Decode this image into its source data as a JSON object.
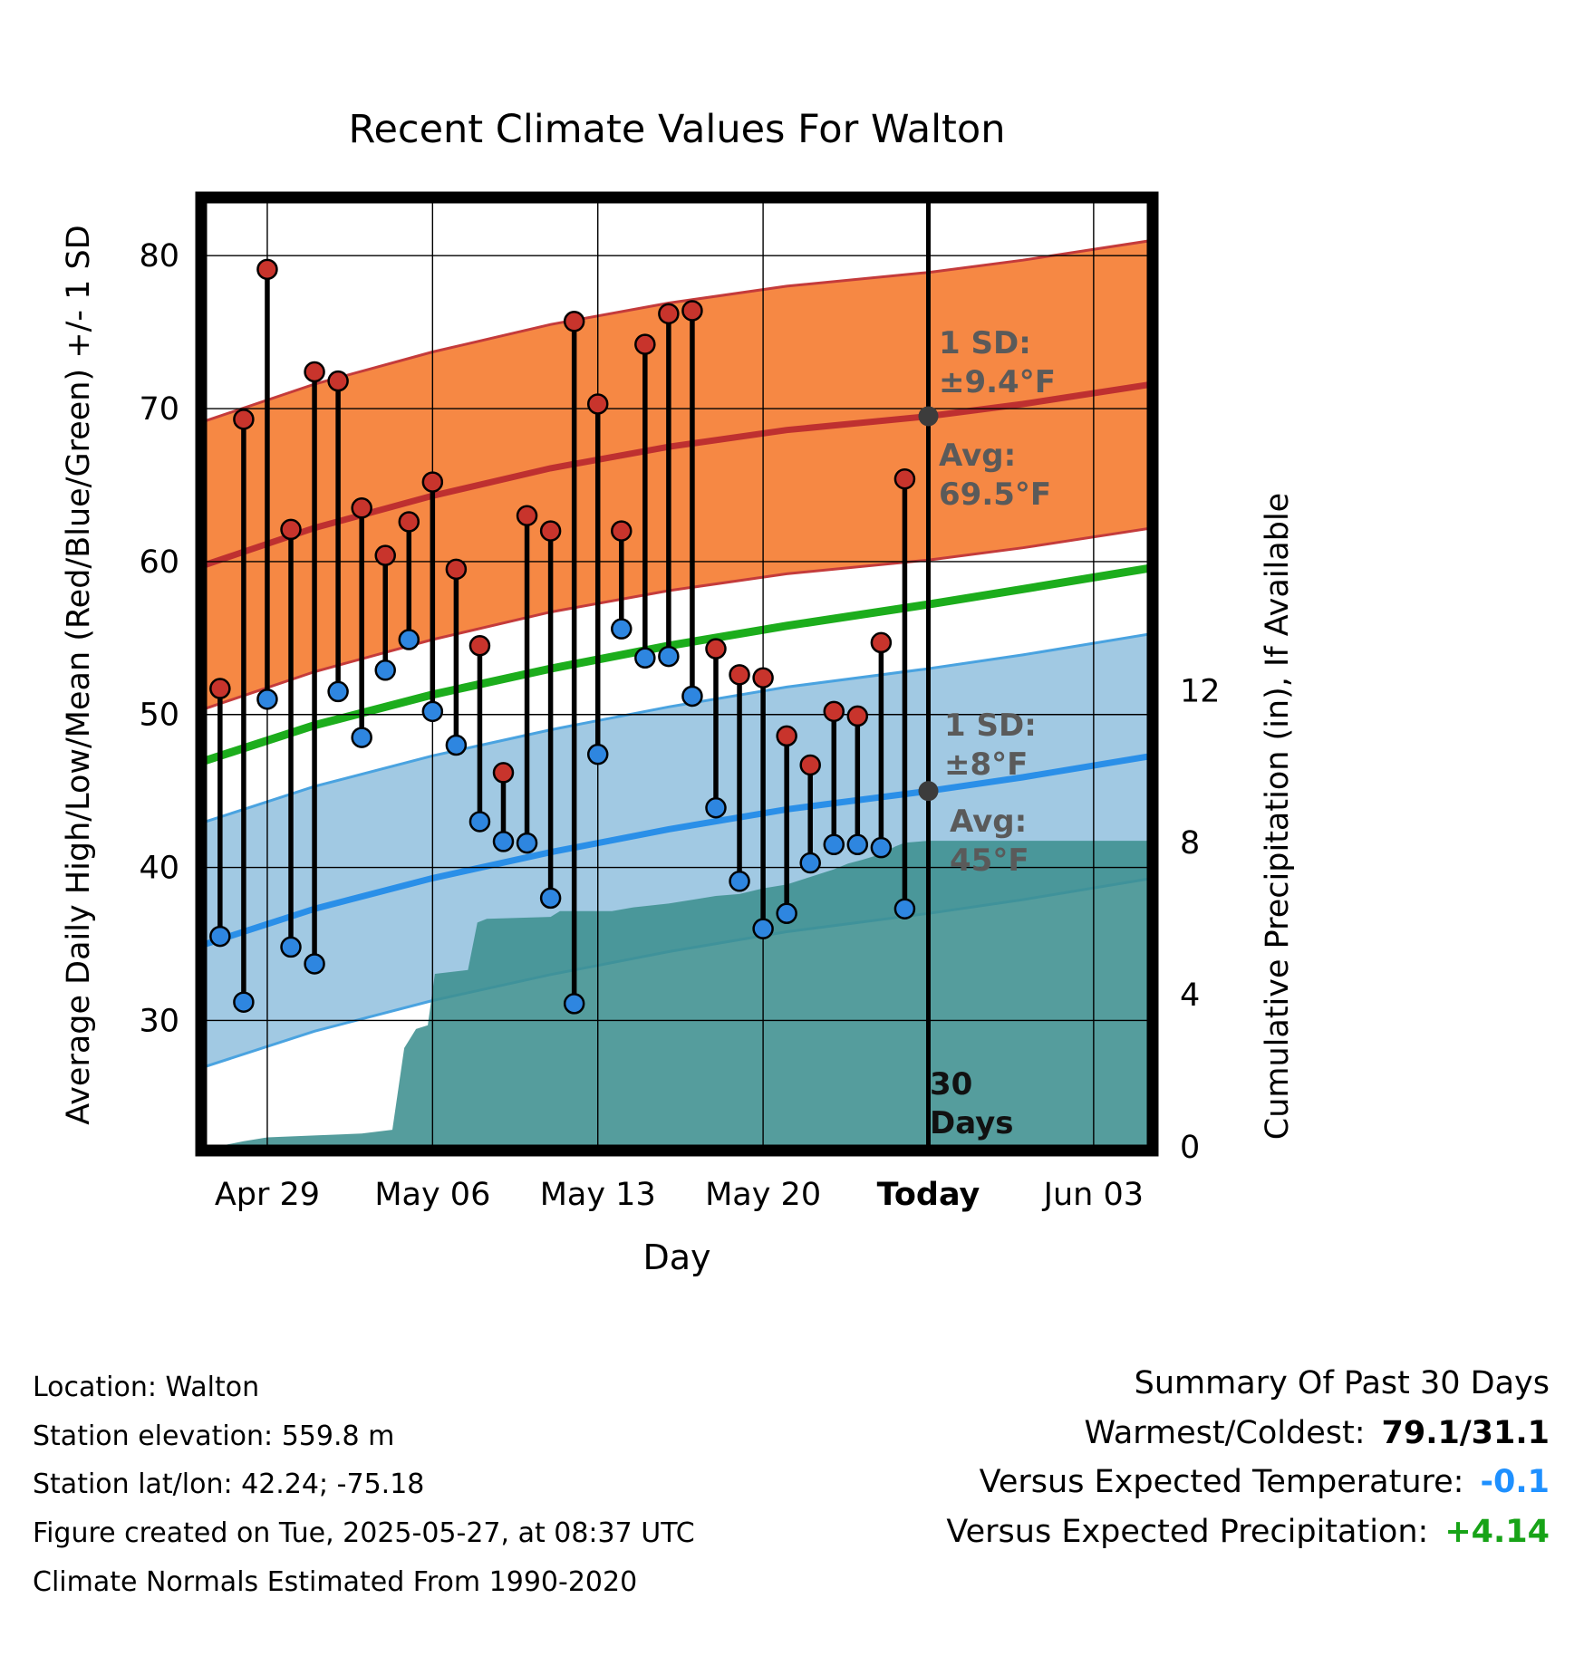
{
  "title": "Recent Climate Values For Walton",
  "axes": {
    "y_left_label": "Average Daily High/Low/Mean (Red/Blue/Green) +/- 1 SD",
    "y_right_label": "Cumulative Precipitation (in), If Available",
    "x_label": "Day",
    "x_domain": [
      0.2,
      40.5
    ],
    "y_left_domain": [
      21.5,
      83.8
    ],
    "y_right_domain": [
      0,
      24.97
    ],
    "y_left_ticks": [
      30,
      40,
      50,
      60,
      70,
      80
    ],
    "y_right_ticks": [
      0,
      4,
      8,
      12
    ],
    "x_ticks": [
      {
        "day": 3,
        "label": "Apr 29",
        "bold": false
      },
      {
        "day": 10,
        "label": "May 06",
        "bold": false
      },
      {
        "day": 17,
        "label": "May 13",
        "bold": false
      },
      {
        "day": 24,
        "label": "May 20",
        "bold": false
      },
      {
        "day": 31,
        "label": "Today",
        "bold": true
      },
      {
        "day": 38,
        "label": "Jun 03",
        "bold": false
      }
    ]
  },
  "chart_data": {
    "type": "line",
    "title": "Recent Climate Values For Walton",
    "xlabel": "Day",
    "ylabel_left": "Average Daily High/Low/Mean (Red/Blue/Green) +/- 1 SD",
    "ylabel_right": "Cumulative Precipitation (in), If Available",
    "today_day": 31,
    "today_high_avg": 69.5,
    "today_low_avg": 45,
    "daily_observations": {
      "dates": [
        "Apr 27",
        "Apr 28",
        "Apr 29",
        "Apr 30",
        "May 01",
        "May 02",
        "May 03",
        "May 04",
        "May 05",
        "May 06",
        "May 07",
        "May 08",
        "May 09",
        "May 10",
        "May 11",
        "May 12",
        "May 13",
        "May 14",
        "May 15",
        "May 16",
        "May 17",
        "May 18",
        "May 19",
        "May 20",
        "May 21",
        "May 22",
        "May 23",
        "May 24",
        "May 25",
        "May 26"
      ],
      "day_offsets": [
        1,
        2,
        3,
        4,
        5,
        6,
        7,
        8,
        9,
        10,
        11,
        12,
        13,
        14,
        15,
        16,
        17,
        18,
        19,
        20,
        21,
        22,
        23,
        24,
        25,
        26,
        27,
        28,
        29,
        30
      ],
      "high_f": [
        51.7,
        69.3,
        79.1,
        62.1,
        72.4,
        71.8,
        63.5,
        60.4,
        62.6,
        65.2,
        59.5,
        54.5,
        46.2,
        63.0,
        62.0,
        75.7,
        70.3,
        62.0,
        74.2,
        76.2,
        76.4,
        54.3,
        52.6,
        52.4,
        48.6,
        46.7,
        50.2,
        49.9,
        54.7,
        65.4
      ],
      "low_f": [
        35.5,
        31.2,
        51.0,
        34.8,
        33.7,
        51.5,
        48.5,
        52.9,
        54.9,
        50.2,
        48.0,
        43.0,
        41.7,
        41.6,
        38.0,
        31.1,
        47.4,
        55.6,
        53.7,
        53.8,
        51.2,
        43.9,
        39.1,
        36.0,
        37.0,
        40.3,
        41.5,
        41.5,
        41.3,
        37.3
      ]
    },
    "climatology": {
      "days": [
        0.2,
        5,
        10,
        15,
        20,
        25,
        31,
        35,
        40.5
      ],
      "high_mean": [
        59.7,
        62.2,
        64.3,
        66.1,
        67.5,
        68.6,
        69.5,
        70.3,
        71.6
      ],
      "mean": [
        46.9,
        49.3,
        51.3,
        53.0,
        54.5,
        55.8,
        57.2,
        58.2,
        59.6
      ],
      "low_mean": [
        34.9,
        37.3,
        39.3,
        41.0,
        42.5,
        43.8,
        45.0,
        45.9,
        47.3
      ],
      "high_sd": 9.4,
      "low_sd": 8.0
    },
    "cumulative_precip_in": {
      "days": [
        0.8,
        2,
        3,
        5,
        7,
        8.3,
        8.8,
        9.3,
        9.8,
        10.1,
        11.5,
        11.9,
        12.3,
        15.0,
        15.4,
        17.6,
        18.5,
        20,
        21,
        22,
        23,
        24,
        25,
        26,
        27,
        27.6,
        28.2,
        29,
        29.6,
        30,
        31,
        40.5
      ],
      "values": [
        0,
        0.15,
        0.25,
        0.3,
        0.35,
        0.45,
        2.6,
        3.1,
        3.2,
        4.55,
        4.65,
        5.9,
        6.0,
        6.05,
        6.2,
        6.2,
        6.3,
        6.4,
        6.5,
        6.6,
        6.65,
        6.8,
        6.9,
        7.1,
        7.3,
        7.45,
        7.55,
        7.7,
        7.9,
        8.0,
        8.05,
        8.05
      ]
    }
  },
  "annotations": {
    "high_sd_label": "1 SD:",
    "high_sd_value": "±9.4°F",
    "high_avg_label": "Avg:",
    "high_avg_value": "69.5°F",
    "low_sd_label": "1 SD:",
    "low_sd_value": "±8°F",
    "low_avg_label": "Avg:",
    "low_avg_value": "45°F",
    "days_label": "30",
    "days_value": "Days"
  },
  "footer": {
    "lines": [
      "Location: Walton",
      "Station elevation: 559.8 m",
      "Station lat/lon: 42.24; -75.18",
      "Figure created on Tue, 2025-05-27, at 08:37 UTC",
      "Climate Normals Estimated From 1990-2020"
    ]
  },
  "summary": {
    "title": "Summary Of Past 30 Days",
    "warmest_coldest_label": "Warmest/Coldest:",
    "warmest_coldest_value": "79.1/31.1",
    "vs_temp_label": "Versus Expected Temperature:",
    "vs_temp_value": "-0.1",
    "vs_precip_label": "Versus Expected Precipitation:",
    "vs_precip_value": "+4.14",
    "temp_anomaly_color": "#1E90FF",
    "precip_anomaly_color": "#17A317"
  },
  "colors": {
    "high_band_fill": "#F5823A",
    "high_band_edge": "#C43B3B",
    "high_line": "#BE3030",
    "low_band_fill": "#9CC6E2",
    "low_band_edge": "#4AA3E0",
    "low_line": "#2A8FE8",
    "mean_line": "#1CAD1C",
    "precip_fill": "#3E9090",
    "stem": "#000000",
    "high_dot": "#C8342C",
    "low_dot": "#2E86E0",
    "today_marker": "#3C3C3C",
    "annotation_text": "#5A5A5A"
  }
}
